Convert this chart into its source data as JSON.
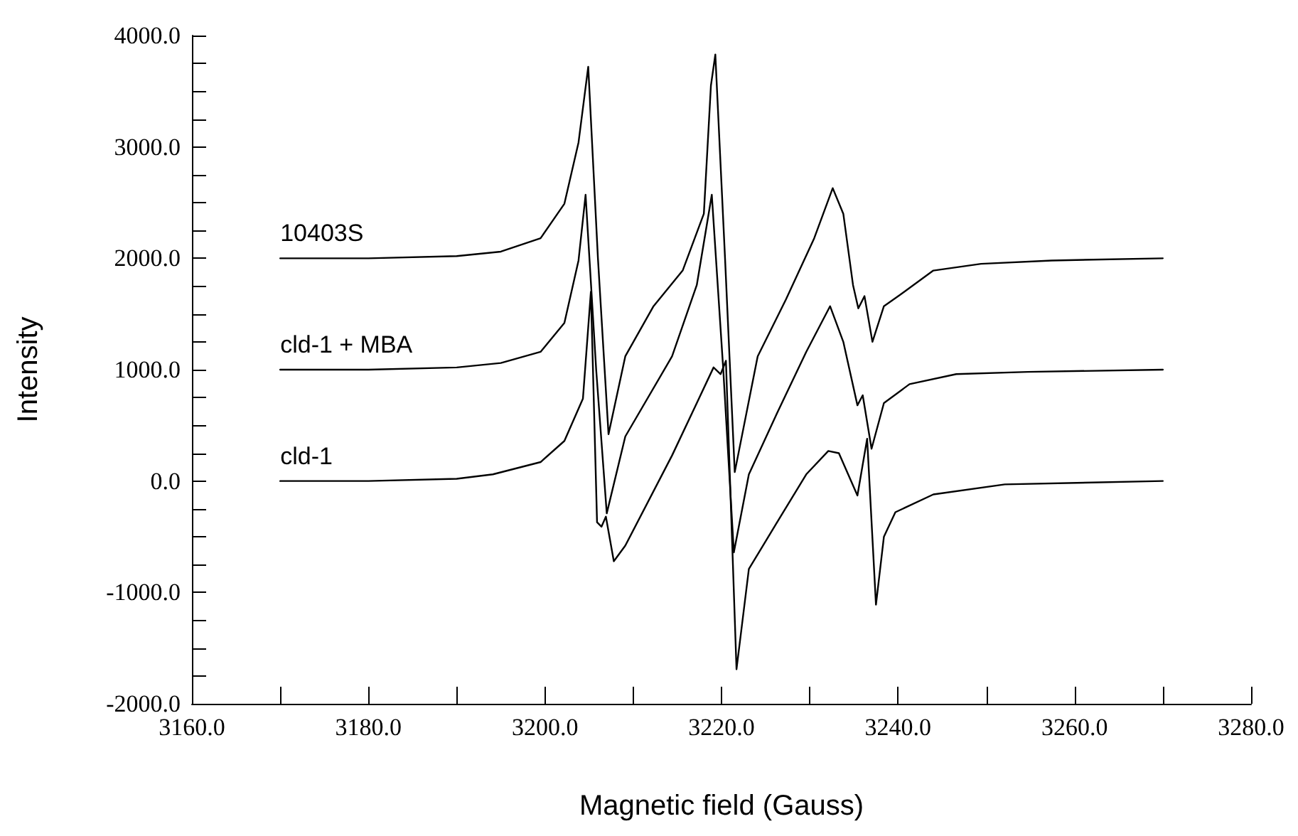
{
  "chart_data": {
    "type": "line",
    "xlabel": "Magnetic field (Gauss)",
    "ylabel": "Intensity",
    "xlim": [
      3160,
      3280
    ],
    "ylim": [
      -2000,
      4000
    ],
    "xticks": [
      {
        "value": 3160,
        "label": "3160.0"
      },
      {
        "value": 3170,
        "label": null
      },
      {
        "value": 3180,
        "label": "3180.0"
      },
      {
        "value": 3190,
        "label": null
      },
      {
        "value": 3200,
        "label": "3200.0"
      },
      {
        "value": 3210,
        "label": null
      },
      {
        "value": 3220,
        "label": "3220.0"
      },
      {
        "value": 3230,
        "label": null
      },
      {
        "value": 3240,
        "label": "3240.0"
      },
      {
        "value": 3250,
        "label": null
      },
      {
        "value": 3260,
        "label": "3260.0"
      },
      {
        "value": 3270,
        "label": null
      },
      {
        "value": 3280,
        "label": "3280.0"
      }
    ],
    "yticks": [
      {
        "value": -2000,
        "label": "-2000.0"
      },
      {
        "value": -1750,
        "label": null
      },
      {
        "value": -1500,
        "label": null
      },
      {
        "value": -1250,
        "label": null
      },
      {
        "value": -1000,
        "label": "-1000.0"
      },
      {
        "value": -750,
        "label": null
      },
      {
        "value": -500,
        "label": null
      },
      {
        "value": -250,
        "label": null
      },
      {
        "value": 0,
        "label": "0.0"
      },
      {
        "value": 250,
        "label": null
      },
      {
        "value": 500,
        "label": null
      },
      {
        "value": 750,
        "label": null
      },
      {
        "value": 1000,
        "label": "1000.0"
      },
      {
        "value": 1250,
        "label": null
      },
      {
        "value": 1500,
        "label": null
      },
      {
        "value": 1750,
        "label": null
      },
      {
        "value": 2000,
        "label": "2000.0"
      },
      {
        "value": 2250,
        "label": null
      },
      {
        "value": 2500,
        "label": null
      },
      {
        "value": 2750,
        "label": null
      },
      {
        "value": 3000,
        "label": "3000.0"
      },
      {
        "value": 3250,
        "label": null
      },
      {
        "value": 3500,
        "label": null
      },
      {
        "value": 3750,
        "label": null
      },
      {
        "value": 4000,
        "label": "4000.0"
      }
    ],
    "grid": false,
    "legend": false,
    "marker": "none",
    "line_style": "solid",
    "series": [
      {
        "name": "10403S",
        "color": "#000000",
        "x": [
          3170,
          3180,
          3190,
          3195,
          3199.5,
          3202.2,
          3203.8,
          3204.9,
          3206,
          3207.2,
          3209.1,
          3212.3,
          3215.6,
          3218,
          3218.8,
          3219.3,
          3220.4,
          3221.5,
          3224.1,
          3227.3,
          3230.5,
          3232.6,
          3233.8,
          3234.9,
          3235.5,
          3236.2,
          3237.1,
          3238.4,
          3240.2,
          3244,
          3249.4,
          3257.4,
          3270
        ],
        "values": [
          2000,
          2000,
          2020,
          2060,
          2180,
          2490,
          3040,
          3720,
          2000,
          420,
          1120,
          1570,
          1890,
          2400,
          3550,
          3830,
          2000,
          80,
          1120,
          1630,
          2180,
          2630,
          2400,
          1760,
          1550,
          1660,
          1250,
          1570,
          1670,
          1890,
          1950,
          1980,
          2000
        ]
      },
      {
        "name": "cld-1 + MBA",
        "color": "#000000",
        "x": [
          3170,
          3180,
          3190,
          3195,
          3199.5,
          3202.2,
          3203.8,
          3204.6,
          3205.8,
          3207,
          3209.1,
          3214.4,
          3217.2,
          3218.9,
          3220.2,
          3221.4,
          3223.1,
          3226.3,
          3229.6,
          3232.3,
          3233.8,
          3235.4,
          3236,
          3237,
          3238.4,
          3241.3,
          3246.6,
          3254.7,
          3270
        ],
        "values": [
          1000,
          1000,
          1020,
          1060,
          1160,
          1420,
          1980,
          2570,
          1000,
          -290,
          400,
          1120,
          1760,
          2570,
          1000,
          -640,
          60,
          610,
          1160,
          1570,
          1250,
          680,
          770,
          290,
          700,
          870,
          960,
          980,
          1000
        ]
      },
      {
        "name": "cld-1",
        "color": "#000000",
        "x": [
          3170,
          3180,
          3190,
          3194.1,
          3199.5,
          3202.2,
          3204.3,
          3205.2,
          3205.9,
          3206.4,
          3206.9,
          3207.8,
          3209.1,
          3214.4,
          3217.2,
          3219.1,
          3219.9,
          3220.5,
          3221.7,
          3223.1,
          3226.3,
          3229.6,
          3232.1,
          3233.3,
          3235.4,
          3236.5,
          3237.5,
          3238.4,
          3239.7,
          3244,
          3252.1,
          3270
        ],
        "values": [
          0,
          0,
          20,
          60,
          170,
          360,
          740,
          1700,
          -370,
          -410,
          -320,
          -720,
          -580,
          230,
          700,
          1020,
          960,
          1080,
          -1690,
          -790,
          -370,
          60,
          270,
          250,
          -130,
          380,
          -1110,
          -500,
          -280,
          -120,
          -30,
          0
        ]
      }
    ]
  }
}
